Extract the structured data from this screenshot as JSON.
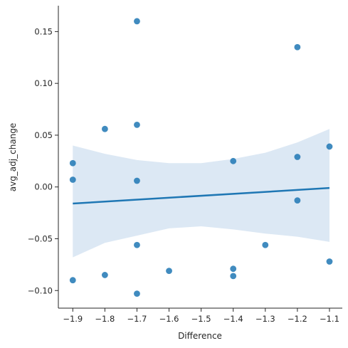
{
  "chart_data": {
    "type": "scatter",
    "xlabel": "Difference",
    "ylabel": "avg_adj_change",
    "xlim": [
      -1.945,
      -1.06
    ],
    "ylim": [
      -0.117,
      0.175
    ],
    "x_ticks": [
      -1.9,
      -1.8,
      -1.7,
      -1.6,
      -1.5,
      -1.4,
      -1.3,
      -1.2,
      -1.1
    ],
    "x_tick_labels": [
      "−1.9",
      "−1.8",
      "−1.7",
      "−1.6",
      "−1.5",
      "−1.4",
      "−1.3",
      "−1.2",
      "−1.1"
    ],
    "y_ticks": [
      -0.1,
      -0.05,
      0.0,
      0.05,
      0.1,
      0.15
    ],
    "y_tick_labels": [
      "−0.10",
      "−0.05",
      "0.00",
      "0.05",
      "0.10",
      "0.15"
    ],
    "grid": false,
    "points": [
      {
        "x": -1.9,
        "y": 0.023
      },
      {
        "x": -1.9,
        "y": 0.007
      },
      {
        "x": -1.9,
        "y": -0.09
      },
      {
        "x": -1.8,
        "y": 0.056
      },
      {
        "x": -1.8,
        "y": -0.085
      },
      {
        "x": -1.7,
        "y": 0.16
      },
      {
        "x": -1.7,
        "y": 0.06
      },
      {
        "x": -1.7,
        "y": 0.006
      },
      {
        "x": -1.7,
        "y": -0.056
      },
      {
        "x": -1.7,
        "y": -0.103
      },
      {
        "x": -1.6,
        "y": -0.081
      },
      {
        "x": -1.4,
        "y": 0.025
      },
      {
        "x": -1.4,
        "y": -0.079
      },
      {
        "x": -1.4,
        "y": -0.086
      },
      {
        "x": -1.3,
        "y": -0.056
      },
      {
        "x": -1.2,
        "y": 0.135
      },
      {
        "x": -1.2,
        "y": 0.029
      },
      {
        "x": -1.2,
        "y": -0.013
      },
      {
        "x": -1.1,
        "y": 0.039
      },
      {
        "x": -1.1,
        "y": -0.072
      }
    ],
    "regression_line": {
      "x": [
        -1.9,
        -1.1
      ],
      "y": [
        -0.016,
        -0.001
      ]
    },
    "confidence_band": {
      "x": [
        -1.9,
        -1.8,
        -1.7,
        -1.6,
        -1.5,
        -1.4,
        -1.3,
        -1.2,
        -1.1
      ],
      "upper": [
        0.04,
        0.032,
        0.026,
        0.023,
        0.023,
        0.027,
        0.033,
        0.043,
        0.056
      ],
      "lower": [
        -0.068,
        -0.054,
        -0.047,
        -0.04,
        -0.038,
        -0.041,
        -0.045,
        -0.048,
        -0.053
      ]
    },
    "colors": {
      "points": "#1f77b4",
      "line": "#1f77b4",
      "band": "#c5d9ec",
      "axis": "#262626"
    }
  }
}
